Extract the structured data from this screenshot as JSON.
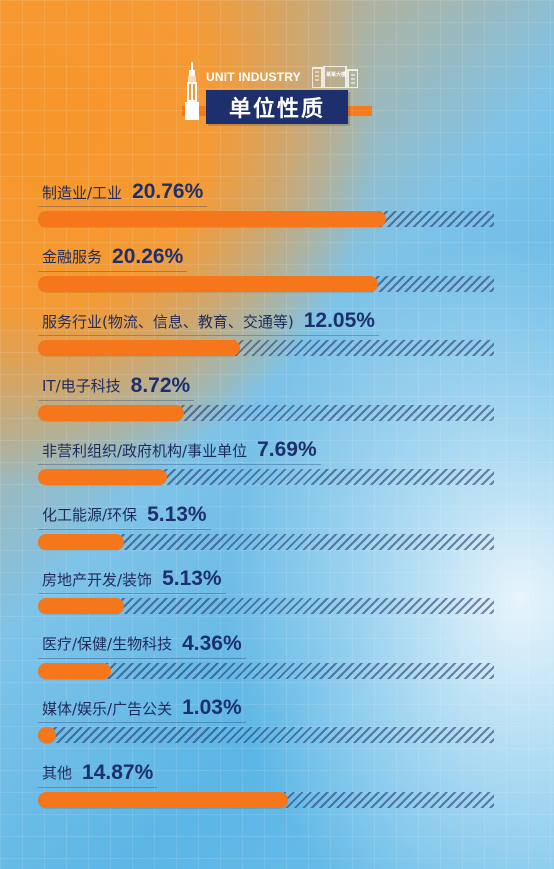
{
  "header": {
    "subtitle": "UNIT INDUSTRY",
    "title": "单位性质",
    "building_sign": "某某大楼"
  },
  "colors": {
    "bar_fill": "#f5761b",
    "title_bg": "#1d2f6d",
    "text_dark": "#1d2f6d"
  },
  "chart_data": {
    "type": "bar",
    "orientation": "horizontal",
    "title": "单位性质",
    "categories": [
      "制造业/工业",
      "金融服务",
      "服务行业(物流、信息、教育、交通等)",
      "IT/电子科技",
      "非营利组织/政府机构/事业单位",
      "化工能源/环保",
      "房地产开发/装饰",
      "医疗/保健/生物科技",
      "媒体/娱乐/广告公关",
      "其他"
    ],
    "values": [
      20.76,
      20.26,
      12.05,
      8.72,
      7.69,
      5.13,
      5.13,
      4.36,
      1.03,
      14.87
    ],
    "labels": [
      "20.76%",
      "20.26%",
      "12.05%",
      "8.72%",
      "7.69%",
      "5.13%",
      "5.13%",
      "4.36%",
      "1.03%",
      "14.87%"
    ],
    "unit": "%",
    "xlim": [
      0,
      25
    ]
  }
}
